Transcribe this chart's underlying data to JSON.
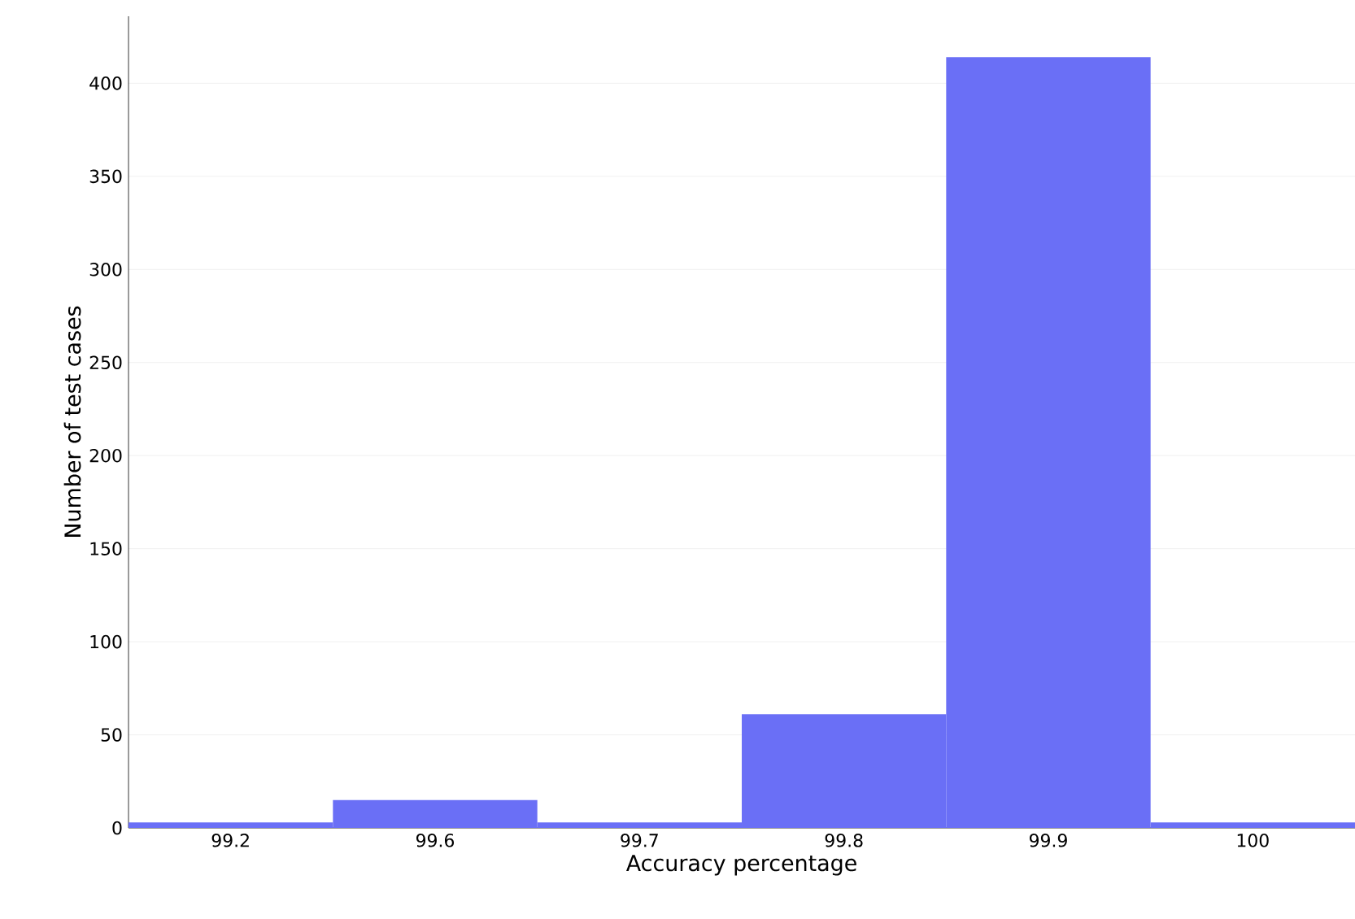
{
  "chart_data": {
    "type": "bar",
    "xlabel": "Accuracy percentage",
    "ylabel": "Number of test cases",
    "categories": [
      "99.2",
      "99.6",
      "99.7",
      "99.8",
      "99.9",
      "100"
    ],
    "values": [
      3,
      15,
      3,
      61,
      414,
      3
    ],
    "color": "#6a6ff6",
    "ylim": [
      0,
      436
    ],
    "yticks": [
      0,
      50,
      100,
      150,
      200,
      250,
      300,
      350,
      400
    ],
    "grid": "y"
  }
}
